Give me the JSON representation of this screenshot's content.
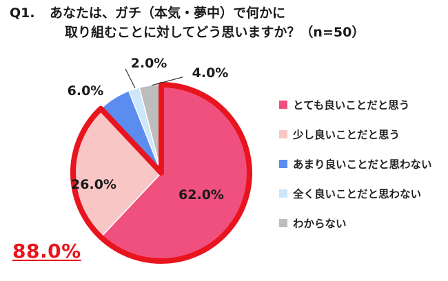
{
  "question": {
    "label": "Q1.",
    "line1": "あなたは、ガチ（本気・夢中）で何かに",
    "line2": "取り組むことに対してどう思いますか？（n=50）"
  },
  "highlight": "88.0%",
  "chart_data": {
    "type": "pie",
    "unit": "%",
    "categories": [
      "とても良いことだと思う",
      "少し良いことだと思う",
      "あまり良いことだと思わない",
      "全く良いことだと思わない",
      "わからない"
    ],
    "values": [
      62.0,
      26.0,
      6.0,
      2.0,
      4.0
    ],
    "labels": [
      "62.0%",
      "26.0%",
      "6.0%",
      "2.0%",
      "4.0%"
    ],
    "colors": [
      "#f0507e",
      "#f9c6c6",
      "#5b8df0",
      "#cce6fb",
      "#bdbdbd"
    ],
    "start_angle_deg": 0,
    "direction": "clockwise",
    "highlight_outline_color": "#e8141e",
    "highlighted_categories": [
      "とても良いことだと思う",
      "少し良いことだと思う"
    ],
    "legend_position": "right"
  }
}
